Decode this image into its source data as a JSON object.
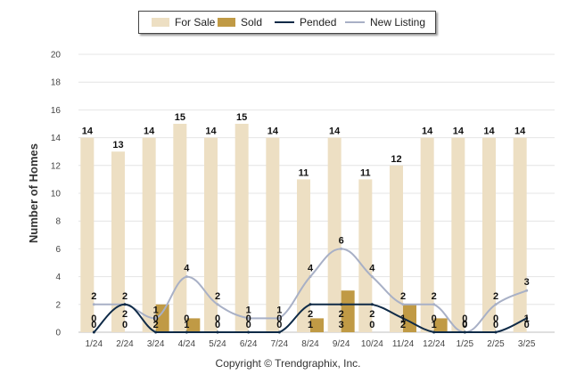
{
  "chart_data": {
    "type": "bar",
    "categories": [
      "1/24",
      "2/24",
      "3/24",
      "4/24",
      "5/24",
      "6/24",
      "7/24",
      "8/24",
      "9/24",
      "10/24",
      "11/24",
      "12/24",
      "1/25",
      "2/25",
      "3/25"
    ],
    "series": [
      {
        "name": "For Sale",
        "kind": "bar",
        "color": "#eddfc3",
        "values": [
          14,
          13,
          14,
          15,
          14,
          15,
          14,
          11,
          14,
          11,
          12,
          14,
          14,
          14,
          14
        ]
      },
      {
        "name": "Sold",
        "kind": "bar",
        "color": "#c09a45",
        "values": [
          0,
          0,
          2,
          1,
          0,
          0,
          0,
          1,
          3,
          0,
          2,
          1,
          0,
          0,
          0
        ]
      },
      {
        "name": "Pended",
        "kind": "line",
        "color": "#0e2a47",
        "values": [
          0,
          2,
          0,
          0,
          0,
          0,
          0,
          2,
          2,
          2,
          1,
          0,
          0,
          0,
          1
        ]
      },
      {
        "name": "New Listing",
        "kind": "line",
        "color": "#a8b0c6",
        "values": [
          2,
          2,
          1,
          4,
          2,
          1,
          1,
          4,
          6,
          4,
          2,
          2,
          0,
          2,
          3
        ]
      }
    ],
    "ylabel": "Number of Homes",
    "xlabel": "",
    "ylim": [
      0,
      20
    ],
    "yticks": [
      0,
      2,
      4,
      6,
      8,
      10,
      12,
      14,
      16,
      18,
      20
    ],
    "grid": true,
    "legend_position": "top"
  },
  "footer": {
    "copyright": "Copyright © Trendgraphix, Inc."
  }
}
